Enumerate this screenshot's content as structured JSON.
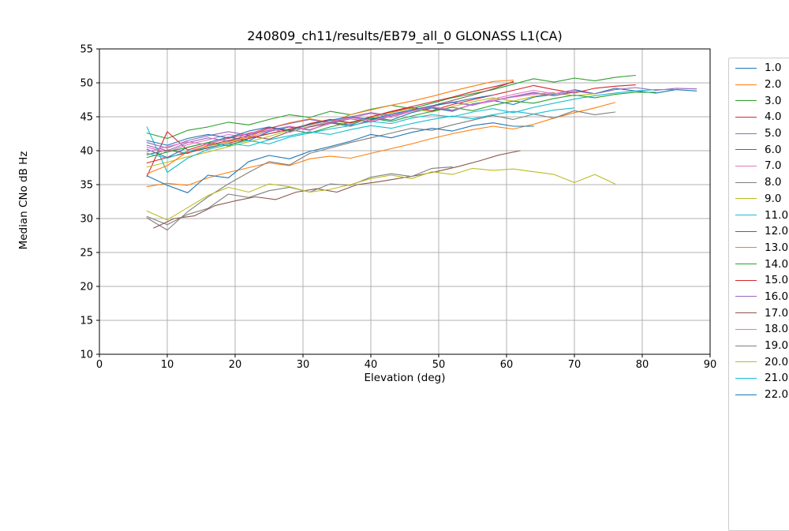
{
  "figure": {
    "background": "#ffffff",
    "spine_color": "#000000",
    "tick_color": "#000000"
  },
  "chart_data": {
    "type": "line",
    "title": "240809_ch11/results/EB79_all_0 GLONASS L1(CA)",
    "xlabel": "Elevation (deg)",
    "ylabel": "Median CNo dB Hz",
    "xlim": [
      0,
      90
    ],
    "ylim": [
      10,
      55
    ],
    "xticks": [
      0,
      10,
      20,
      30,
      40,
      50,
      60,
      70,
      80,
      90
    ],
    "yticks": [
      10,
      15,
      20,
      25,
      30,
      35,
      40,
      45,
      50,
      55
    ],
    "grid": true,
    "grid_color": "#b0b0b0",
    "legend_position": "outside-right",
    "legend_clipped_last_entry": "22.0",
    "series": [
      {
        "name": "1.0",
        "color": "#1f77b4",
        "x_start": 7,
        "x_step": 3,
        "y": [
          40.2,
          39.0,
          40.5,
          41.2,
          42.0,
          41.5,
          42.8,
          43.5,
          43.0,
          44.2,
          43.8,
          44.9,
          44.5,
          45.6,
          46.3,
          45.8,
          46.9,
          47.4,
          46.8,
          47.9,
          48.3,
          49.0,
          48.4,
          49.2,
          48.8,
          48.5,
          49.0,
          48.8
        ]
      },
      {
        "name": "2.0",
        "color": "#ff7f0e",
        "x_start": 7,
        "x_step": 3,
        "y": [
          34.7,
          35.2,
          34.9,
          36.0,
          36.8,
          37.5,
          38.2,
          37.8,
          38.8,
          39.2,
          38.9,
          39.6,
          40.3,
          41.0,
          41.8,
          42.5,
          43.1,
          43.6,
          43.2,
          43.9,
          44.8,
          45.6,
          46.3,
          47.1
        ]
      },
      {
        "name": "3.0",
        "color": "#2ca02c",
        "x_start": 7,
        "x_step": 3,
        "y": [
          42.6,
          41.8,
          43.0,
          43.5,
          44.2,
          43.8,
          44.6,
          45.3,
          44.9,
          45.8,
          45.3,
          46.1,
          46.7,
          46.2,
          47.0,
          47.8,
          48.4,
          49.0,
          49.8,
          50.6,
          50.1,
          50.7,
          50.3,
          50.8,
          51.1
        ]
      },
      {
        "name": "4.0",
        "color": "#d62728",
        "x_start": 7,
        "x_step": 3,
        "y": [
          36.2,
          42.8,
          40.1,
          41.0,
          41.8,
          42.5,
          43.4,
          42.9,
          44.0,
          44.6,
          44.1,
          45.0,
          45.7,
          46.4,
          45.9,
          46.8,
          47.5,
          48.2,
          48.9,
          49.6,
          49.0,
          48.5,
          49.2,
          49.5,
          49.7
        ]
      },
      {
        "name": "5.0",
        "color": "#9467bd",
        "x_start": 7,
        "x_step": 3,
        "y": [
          40.8,
          40.0,
          41.2,
          41.9,
          41.4,
          42.3,
          43.0,
          43.6,
          43.1,
          44.0,
          44.7,
          44.2,
          45.1,
          45.8,
          46.4,
          45.9,
          46.8,
          47.3,
          48.0,
          48.6,
          48.1,
          48.8,
          48.4,
          49.0,
          49.3,
          48.9,
          49.2,
          49.1
        ]
      },
      {
        "name": "6.0",
        "color": "#8c564b",
        "x_start": 7,
        "x_step": 3,
        "y": [
          39.4,
          40.1,
          39.6,
          40.8,
          41.5,
          42.2,
          41.7,
          42.8,
          43.5,
          44.1,
          43.6,
          44.5,
          45.2,
          45.9,
          46.6,
          47.4,
          48.2,
          49.1,
          50.2
        ]
      },
      {
        "name": "7.0",
        "color": "#e377c2",
        "x_start": 7,
        "x_step": 3,
        "y": [
          40.5,
          39.8,
          40.9,
          41.6,
          42.4,
          41.9,
          42.9,
          43.6,
          43.0,
          44.1,
          44.8,
          45.5,
          44.9,
          45.8,
          46.5,
          47.2,
          46.7,
          47.6,
          48.3,
          48.9,
          48.4,
          49.0
        ]
      },
      {
        "name": "8.0",
        "color": "#7f7f7f",
        "x_start": 7,
        "x_step": 3,
        "y": [
          30.1,
          28.3,
          31.0,
          33.2,
          35.1,
          36.8,
          38.4,
          37.9,
          39.6,
          40.4,
          41.2,
          41.9,
          42.6,
          43.3,
          43.0,
          43.8,
          44.5,
          45.2,
          44.6,
          45.4,
          44.8,
          45.9,
          45.3,
          45.7
        ]
      },
      {
        "name": "9.0",
        "color": "#bcbd22",
        "x_start": 7,
        "x_step": 3,
        "y": [
          37.6,
          38.3,
          39.1,
          39.8,
          40.6,
          41.3,
          42.1,
          43.0,
          43.8,
          44.5,
          44.0,
          44.9,
          45.6,
          46.2,
          45.7,
          46.5,
          47.2,
          47.8,
          47.3,
          48.0,
          48.5,
          48.1,
          48.4
        ]
      },
      {
        "name": "11.0",
        "color": "#17becf",
        "x_start": 7,
        "x_step": 3,
        "y": [
          43.5,
          36.8,
          38.9,
          40.2,
          40.9,
          41.5,
          41.0,
          42.0,
          42.6,
          43.2,
          43.7,
          44.3,
          44.0,
          44.8,
          45.3,
          45.0,
          45.7,
          46.2,
          45.6,
          46.4,
          47.0,
          47.6,
          48.1,
          48.5,
          48.8,
          49.0,
          49.0
        ]
      },
      {
        "name": "12.0",
        "color": "#1f77b4",
        "x_start": 7,
        "x_step": 3,
        "y": [
          36.3,
          34.9,
          33.8,
          36.4,
          36.0,
          38.4,
          39.3,
          38.8,
          39.9,
          40.6,
          41.4,
          42.4,
          41.9,
          42.7,
          43.3,
          42.9,
          43.7,
          44.1,
          43.6,
          43.6
        ]
      },
      {
        "name": "13.0",
        "color": "#ff7f0e",
        "x_start": 7,
        "x_step": 3,
        "y": [
          36.6,
          37.8,
          39.9,
          40.7,
          41.3,
          42.0,
          43.3,
          44.1,
          44.7,
          44.2,
          45.3,
          46.0,
          46.7,
          47.3,
          48.0,
          48.8,
          49.5,
          50.2,
          50.4
        ]
      },
      {
        "name": "14.0",
        "color": "#2ca02c",
        "x_start": 7,
        "x_step": 3,
        "y": [
          39.0,
          39.8,
          40.5,
          41.2,
          40.7,
          41.8,
          42.5,
          43.1,
          42.6,
          43.5,
          44.2,
          44.8,
          44.3,
          45.1,
          45.8,
          46.4,
          45.9,
          46.7,
          47.3,
          47.0,
          47.7,
          48.2,
          47.8,
          48.3,
          48.6,
          48.6
        ]
      },
      {
        "name": "15.0",
        "color": "#d62728",
        "x_start": 7,
        "x_step": 3,
        "y": [
          38.2,
          39.0,
          39.7,
          40.4,
          41.1,
          41.8,
          42.5,
          43.2,
          43.9,
          44.6,
          44.1,
          45.0,
          45.8,
          46.5,
          47.2,
          47.9,
          48.7,
          49.4,
          50.1
        ]
      },
      {
        "name": "16.0",
        "color": "#9467bd",
        "x_start": 7,
        "x_step": 3,
        "y": [
          41.2,
          40.4,
          41.5,
          42.2,
          42.8,
          42.3,
          43.3,
          44.0,
          44.6,
          44.1,
          45.0,
          45.6,
          45.2,
          46.0,
          46.6,
          47.1,
          46.7,
          47.4,
          48.0,
          48.5,
          48.1,
          48.6
        ]
      },
      {
        "name": "17.0",
        "color": "#8c564b",
        "x_start": 8,
        "x_step": 3,
        "y": [
          28.6,
          30.0,
          30.4,
          31.9,
          32.6,
          33.2,
          32.8,
          33.9,
          34.4,
          33.9,
          35.0,
          35.4,
          35.9,
          36.4,
          37.0,
          37.7,
          38.5,
          39.4,
          40.0
        ]
      },
      {
        "name": "18.0",
        "color": "#e377c2",
        "x_start": 7,
        "x_step": 3,
        "y": [
          39.8,
          40.6,
          41.3,
          40.9,
          41.9,
          42.6,
          43.2,
          42.7,
          43.6,
          44.3,
          44.9,
          44.4,
          45.2,
          45.9,
          46.5,
          46.0,
          46.8,
          47.4,
          47.9,
          48.3,
          48.6
        ]
      },
      {
        "name": "19.0",
        "color": "#7f7f7f",
        "x_start": 7,
        "x_step": 3,
        "y": [
          30.3,
          29.1,
          30.6,
          31.5,
          33.6,
          33.1,
          34.1,
          34.6,
          33.9,
          35.1,
          34.9,
          36.1,
          36.6,
          36.2,
          37.4,
          37.6
        ]
      },
      {
        "name": "20.0",
        "color": "#bcbd22",
        "x_start": 7,
        "x_step": 3,
        "y": [
          31.1,
          29.8,
          31.6,
          33.4,
          34.6,
          33.9,
          35.1,
          34.7,
          33.9,
          34.3,
          35.0,
          35.9,
          36.4,
          35.9,
          36.9,
          36.5,
          37.4,
          37.1,
          37.3,
          36.9,
          36.5,
          35.3,
          36.5,
          35.1
        ]
      },
      {
        "name": "21.0",
        "color": "#17becf",
        "x_start": 7,
        "x_step": 3,
        "y": [
          39.6,
          38.9,
          39.9,
          40.5,
          41.1,
          40.7,
          41.6,
          42.2,
          42.8,
          42.4,
          43.1,
          43.7,
          43.3,
          44.0,
          44.6,
          45.1,
          44.7,
          45.3,
          45.8,
          45.4,
          46.0,
          46.3
        ]
      },
      {
        "name": "22.0",
        "color": "#1f77b4",
        "x_start": 7,
        "x_step": 3,
        "y": [
          41.5,
          40.8,
          41.8,
          42.4,
          41.9,
          42.9,
          43.5,
          43.0,
          43.9,
          44.5,
          45.0,
          44.6,
          45.4,
          46.0,
          46.6,
          47.1,
          47.7,
          48.2
        ]
      }
    ]
  }
}
